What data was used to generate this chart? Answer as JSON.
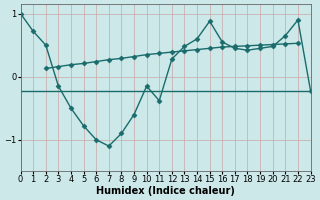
{
  "xlabel": "Humidex (Indice chaleur)",
  "bg_color": "#cce8e8",
  "grid_color_v": "#c8a8a8",
  "grid_color_h": "#c8a8a8",
  "line_color": "#1a6b6b",
  "xlim": [
    0,
    23
  ],
  "ylim": [
    -1.5,
    1.15
  ],
  "xticks": [
    0,
    1,
    2,
    3,
    4,
    5,
    6,
    7,
    8,
    9,
    10,
    11,
    12,
    13,
    14,
    15,
    16,
    17,
    18,
    19,
    20,
    21,
    22,
    23
  ],
  "yticks": [
    -1,
    0,
    1
  ],
  "trend_x": [
    2,
    3,
    4,
    5,
    6,
    7,
    8,
    9,
    10,
    11,
    12,
    13,
    14,
    15,
    16,
    17,
    18,
    19,
    20,
    21,
    22
  ],
  "trend_y": [
    0.13,
    0.16,
    0.19,
    0.21,
    0.24,
    0.27,
    0.29,
    0.32,
    0.35,
    0.37,
    0.39,
    0.41,
    0.43,
    0.45,
    0.47,
    0.48,
    0.49,
    0.5,
    0.51,
    0.52,
    0.53
  ],
  "zigzag_x": [
    0,
    1,
    2,
    3,
    4,
    5,
    6,
    7,
    8,
    9,
    10,
    11,
    12,
    13,
    14,
    15,
    16,
    17,
    18,
    19,
    20,
    21,
    22,
    23
  ],
  "zigzag_y": [
    1.0,
    0.72,
    0.5,
    -0.15,
    -0.5,
    -0.78,
    -1.0,
    -1.1,
    -0.9,
    -0.6,
    -0.15,
    -0.38,
    0.28,
    0.48,
    0.6,
    0.88,
    0.55,
    0.45,
    0.42,
    0.45,
    0.48,
    0.65,
    0.9,
    -0.22
  ],
  "hline_y": -0.22,
  "marker": "D",
  "markersize": 2.5,
  "linewidth": 1.0
}
